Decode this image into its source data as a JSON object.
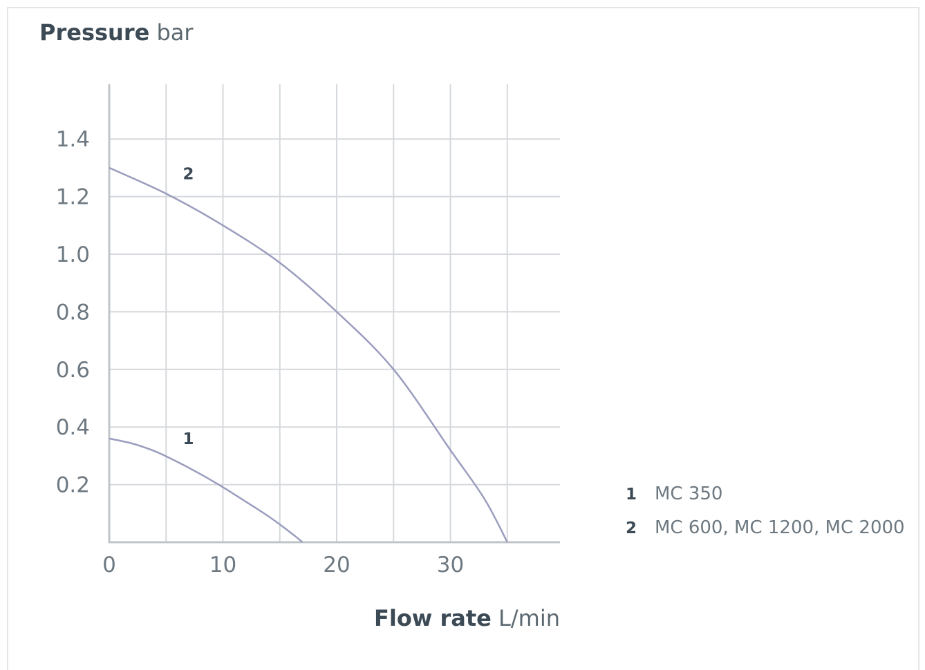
{
  "chart_data": {
    "type": "line",
    "ylabel": {
      "bold": "Pressure",
      "unit": "bar"
    },
    "xlabel": {
      "bold": "Flow rate",
      "unit": "L/min"
    },
    "xlim": [
      0,
      40
    ],
    "ylim": [
      0,
      1.6
    ],
    "xticks": [
      "0",
      "10",
      "20",
      "30"
    ],
    "xtick_values": [
      0,
      10,
      20,
      30
    ],
    "yticks": [
      "0.2",
      "0.4",
      "0.6",
      "0.8",
      "1.0",
      "1.2",
      "1.4"
    ],
    "ytick_values": [
      0.2,
      0.4,
      0.6,
      0.8,
      1.0,
      1.2,
      1.4
    ],
    "x_grid": [
      0,
      5,
      10,
      15,
      20,
      25,
      30,
      35
    ],
    "y_grid": [
      0.2,
      0.4,
      0.6,
      0.8,
      1.0,
      1.2,
      1.4
    ],
    "grid": true,
    "line_color": "#9a9dbd",
    "grid_color": "#d5d8dc",
    "series": [
      {
        "name": "1",
        "x": [
          0,
          2,
          4,
          6,
          8,
          10,
          12,
          14,
          16,
          17
        ],
        "y": [
          0.36,
          0.343,
          0.316,
          0.279,
          0.237,
          0.191,
          0.141,
          0.09,
          0.032,
          0.0
        ]
      },
      {
        "name": "2",
        "x": [
          0,
          5,
          10,
          15,
          20,
          25,
          30,
          33,
          35
        ],
        "y": [
          1.3,
          1.21,
          1.1,
          0.97,
          0.8,
          0.6,
          0.32,
          0.15,
          0.0
        ]
      }
    ],
    "curve_labels": [
      {
        "text": "1",
        "x": 6.9,
        "y": 0.34
      },
      {
        "text": "2",
        "x": 6.9,
        "y": 1.26
      }
    ],
    "legend": [
      {
        "num": "1",
        "text": "MC 350"
      },
      {
        "num": "2",
        "text": "MC 600, MC 1200, MC 2000"
      }
    ],
    "legend_position": "right"
  }
}
